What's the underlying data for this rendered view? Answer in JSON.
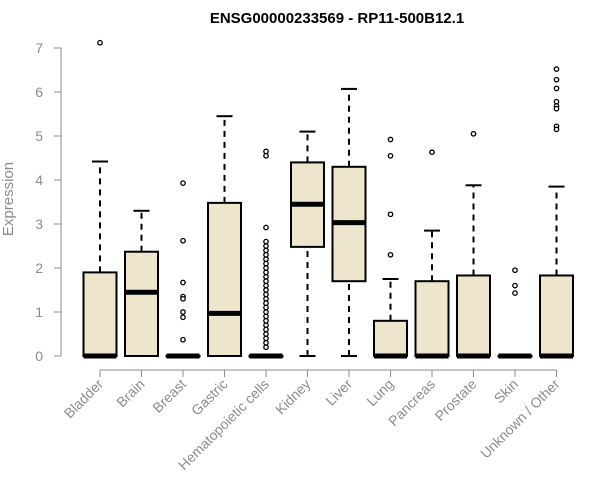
{
  "chart_data": {
    "type": "boxplot",
    "title": "ENSG00000233569 - RP11-500B12.1",
    "xlabel": "",
    "ylabel": "Expression",
    "ylim": [
      0,
      7
    ],
    "yticks": [
      0,
      1,
      2,
      3,
      4,
      5,
      6,
      7
    ],
    "grid": false,
    "legend": "none",
    "box_fill": "#ede6cc",
    "box_stroke": "#000000",
    "categories": [
      "Bladder",
      "Brain",
      "Breast",
      "Gastric",
      "Hematopoietic cells",
      "Kidney",
      "Liver",
      "Lung",
      "Pancreas",
      "Prostate",
      "Skin",
      "Unknown / Other"
    ],
    "boxes": [
      {
        "category": "Bladder",
        "min": 0,
        "q1": 0,
        "median": 0,
        "q3": 1.9,
        "max": 4.42,
        "outliers": [
          7.12
        ]
      },
      {
        "category": "Brain",
        "min": 0,
        "q1": 0,
        "median": 1.45,
        "q3": 2.37,
        "max": 3.3,
        "outliers": []
      },
      {
        "category": "Breast",
        "min": 0,
        "q1": 0,
        "median": 0,
        "q3": 0,
        "max": 0,
        "outliers": [
          3.93,
          2.62,
          1.67,
          1.35,
          1.3,
          1.0,
          0.88,
          0.37
        ]
      },
      {
        "category": "Gastric",
        "min": 0,
        "q1": 0,
        "median": 0.97,
        "q3": 3.48,
        "max": 5.45,
        "outliers": []
      },
      {
        "category": "Hematopoietic cells",
        "min": 0,
        "q1": 0,
        "median": 0,
        "q3": 0,
        "max": 0,
        "outliers": [
          4.65,
          4.55,
          2.92,
          2.6,
          2.5,
          2.4,
          2.3,
          2.2,
          2.1,
          2.0,
          1.9,
          1.8,
          1.7,
          1.6,
          1.5,
          1.4,
          1.3,
          1.2,
          1.1,
          1.0,
          0.9,
          0.8,
          0.7,
          0.6,
          0.5,
          0.4,
          0.3,
          0.2
        ]
      },
      {
        "category": "Kidney",
        "min": 0,
        "q1": 2.48,
        "median": 3.45,
        "q3": 4.4,
        "max": 5.1,
        "outliers": []
      },
      {
        "category": "Liver",
        "min": 0,
        "q1": 1.7,
        "median": 3.03,
        "q3": 4.3,
        "max": 6.07,
        "outliers": []
      },
      {
        "category": "Lung",
        "min": 0,
        "q1": 0,
        "median": 0,
        "q3": 0.8,
        "max": 1.75,
        "outliers": [
          4.92,
          4.55,
          3.22,
          2.3
        ]
      },
      {
        "category": "Pancreas",
        "min": 0,
        "q1": 0,
        "median": 0,
        "q3": 1.7,
        "max": 2.85,
        "outliers": [
          4.63
        ]
      },
      {
        "category": "Prostate",
        "min": 0,
        "q1": 0,
        "median": 0,
        "q3": 1.83,
        "max": 3.88,
        "outliers": [
          5.05
        ]
      },
      {
        "category": "Skin",
        "min": 0,
        "q1": 0,
        "median": 0,
        "q3": 0,
        "max": 0,
        "outliers": [
          1.95,
          1.6,
          1.43
        ]
      },
      {
        "category": "Unknown / Other",
        "min": 0,
        "q1": 0,
        "median": 0,
        "q3": 1.83,
        "max": 3.85,
        "outliers": [
          6.52,
          6.28,
          6.08,
          5.78,
          5.68,
          5.62,
          5.22,
          5.15
        ]
      }
    ]
  }
}
